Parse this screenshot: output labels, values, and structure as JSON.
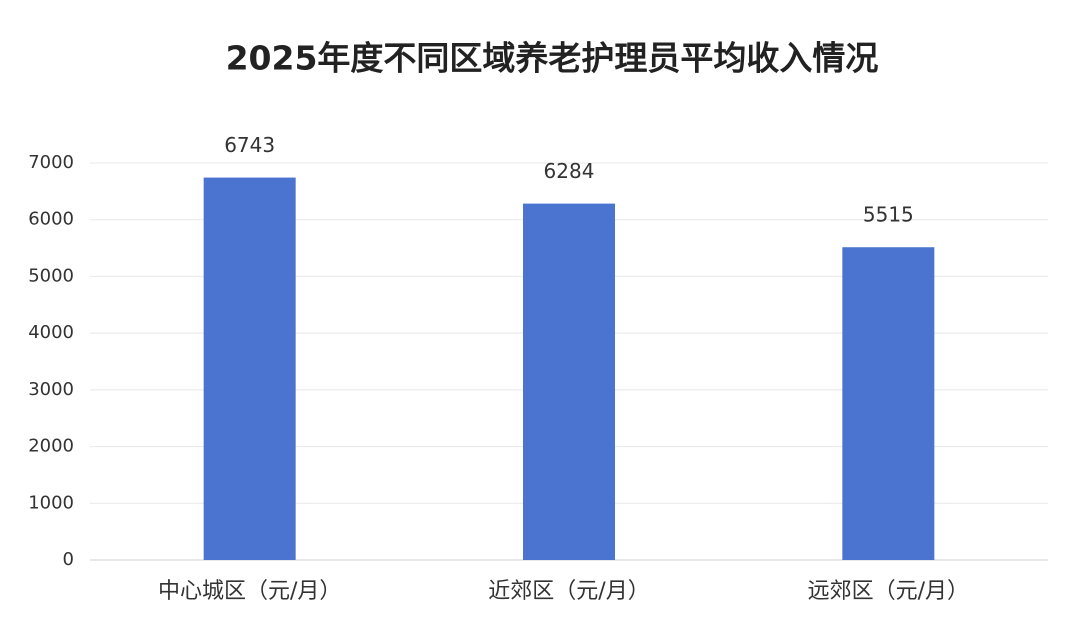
{
  "chart_data": {
    "type": "bar",
    "title": "2025年度不同区域养老护理员平均收入情况",
    "categories": [
      "中心城区（元/月）",
      "近郊区（元/月）",
      "远郊区（元/月）"
    ],
    "values": [
      6743,
      6284,
      5515
    ],
    "color": "#4a74cf",
    "ylim": [
      0,
      7000
    ],
    "yticks": [
      0,
      1000,
      2000,
      3000,
      4000,
      5000,
      6000,
      7000
    ],
    "grid": true
  }
}
